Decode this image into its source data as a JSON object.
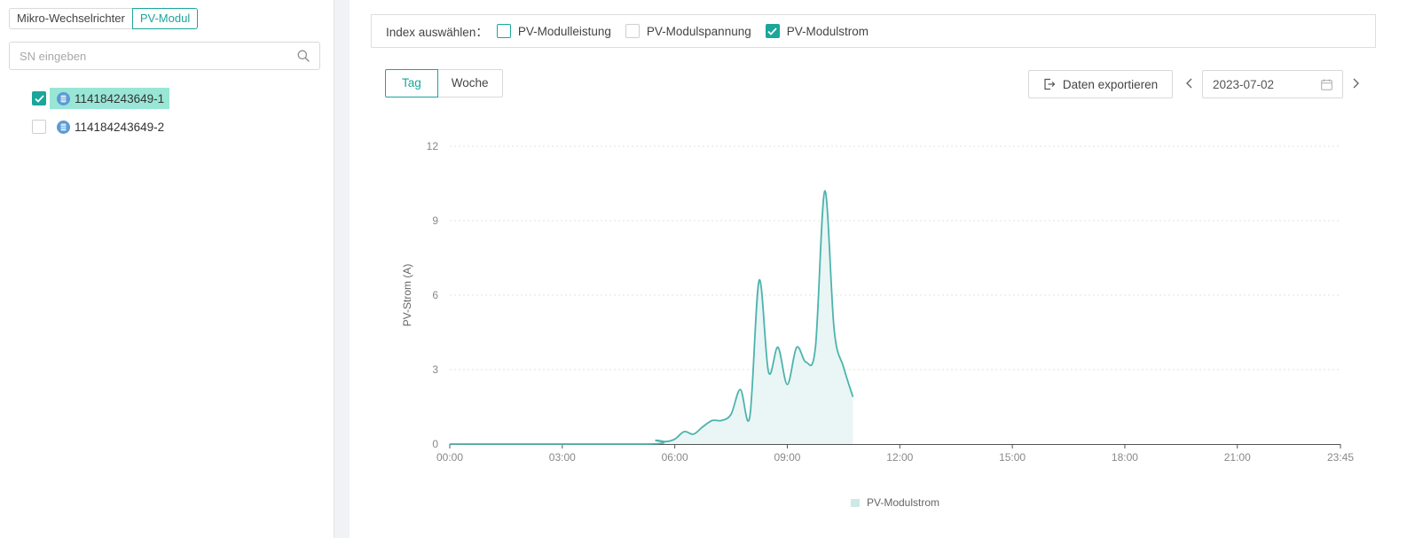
{
  "sidebar": {
    "type_tabs": [
      "Mikro-Wechselrichter",
      "PV-Modul"
    ],
    "active_type_tab": "PV-Modul",
    "search_placeholder": "SN eingeben",
    "tree": [
      {
        "label": "114184243649-1",
        "checked": true,
        "selected": true
      },
      {
        "label": "114184243649-2",
        "checked": false,
        "selected": false
      }
    ]
  },
  "index_bar": {
    "label": "Index auswählen：",
    "options": [
      {
        "label": "PV-Modulleistung",
        "checked": false
      },
      {
        "label": "PV-Modulspannung",
        "checked": false
      },
      {
        "label": "PV-Modulstrom",
        "checked": true
      }
    ]
  },
  "toolbar": {
    "periods": [
      "Tag",
      "Woche"
    ],
    "active_period": "Tag",
    "export_label": "Daten exportieren",
    "date_value": "2023-07-02"
  },
  "colors": {
    "accent": "#1aa69a",
    "line": "#4db3ad",
    "area": "#e9f6f5",
    "selected_bg": "#99e6d6"
  },
  "chart_data": {
    "type": "area",
    "ylabel": "PV-Strom (A)",
    "xlabel": "",
    "ylim": [
      0,
      12
    ],
    "y_ticks": [
      0,
      3,
      6,
      9,
      12
    ],
    "x_range_hours": [
      0,
      23.75
    ],
    "x_ticks": [
      "00:00",
      "03:00",
      "06:00",
      "09:00",
      "12:00",
      "15:00",
      "18:00",
      "21:00",
      "23:45"
    ],
    "x_tick_hours": [
      0,
      3,
      6,
      9,
      12,
      15,
      18,
      21,
      23.75
    ],
    "legend": "PV-Modulstrom",
    "legend_position": "bottom-center",
    "grid": true,
    "series": [
      {
        "name": "PV-Modulstrom",
        "points": [
          [
            0,
            0
          ],
          [
            5.25,
            0
          ],
          [
            5.5,
            0.15
          ],
          [
            5.75,
            0.1
          ],
          [
            6.0,
            0.2
          ],
          [
            6.25,
            0.5
          ],
          [
            6.5,
            0.4
          ],
          [
            6.75,
            0.7
          ],
          [
            7.0,
            0.95
          ],
          [
            7.25,
            0.95
          ],
          [
            7.5,
            1.2
          ],
          [
            7.75,
            2.2
          ],
          [
            8.0,
            1.1
          ],
          [
            8.25,
            6.6
          ],
          [
            8.5,
            2.9
          ],
          [
            8.75,
            3.9
          ],
          [
            9.0,
            2.4
          ],
          [
            9.25,
            3.9
          ],
          [
            9.5,
            3.3
          ],
          [
            9.75,
            3.9
          ],
          [
            10.0,
            10.2
          ],
          [
            10.25,
            4.6
          ],
          [
            10.5,
            3.1
          ],
          [
            10.75,
            1.9
          ]
        ]
      }
    ]
  }
}
